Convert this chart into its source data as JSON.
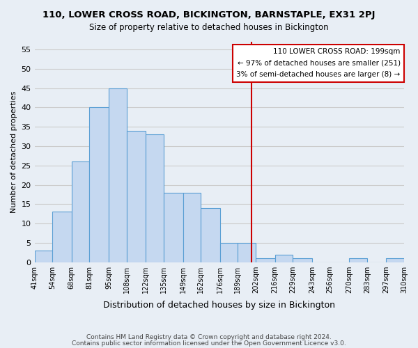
{
  "title": "110, LOWER CROSS ROAD, BICKINGTON, BARNSTAPLE, EX31 2PJ",
  "subtitle": "Size of property relative to detached houses in Bickington",
  "xlabel": "Distribution of detached houses by size in Bickington",
  "ylabel": "Number of detached properties",
  "bin_edges": [
    41,
    54,
    68,
    81,
    95,
    108,
    122,
    135,
    149,
    162,
    176,
    189,
    202,
    216,
    229,
    243,
    256,
    270,
    283,
    297,
    310
  ],
  "bin_labels": [
    "41sqm",
    "54sqm",
    "68sqm",
    "81sqm",
    "95sqm",
    "108sqm",
    "122sqm",
    "135sqm",
    "149sqm",
    "162sqm",
    "176sqm",
    "189sqm",
    "202sqm",
    "216sqm",
    "229sqm",
    "243sqm",
    "256sqm",
    "270sqm",
    "283sqm",
    "297sqm",
    "310sqm"
  ],
  "counts": [
    3,
    13,
    26,
    40,
    45,
    34,
    33,
    18,
    18,
    14,
    5,
    5,
    1,
    2,
    1,
    0,
    0,
    1,
    0,
    1
  ],
  "bar_color": "#c5d8f0",
  "bar_edge_color": "#5a9fd4",
  "grid_color": "#cccccc",
  "bg_color": "#e8eef5",
  "vline_x": 199,
  "vline_color": "#cc0000",
  "annotation_title": "110 LOWER CROSS ROAD: 199sqm",
  "annotation_line1": "← 97% of detached houses are smaller (251)",
  "annotation_line2": "3% of semi-detached houses are larger (8) →",
  "ylim": [
    0,
    57
  ],
  "yticks": [
    0,
    5,
    10,
    15,
    20,
    25,
    30,
    35,
    40,
    45,
    50,
    55
  ],
  "footer1": "Contains HM Land Registry data © Crown copyright and database right 2024.",
  "footer2": "Contains public sector information licensed under the Open Government Licence v3.0."
}
